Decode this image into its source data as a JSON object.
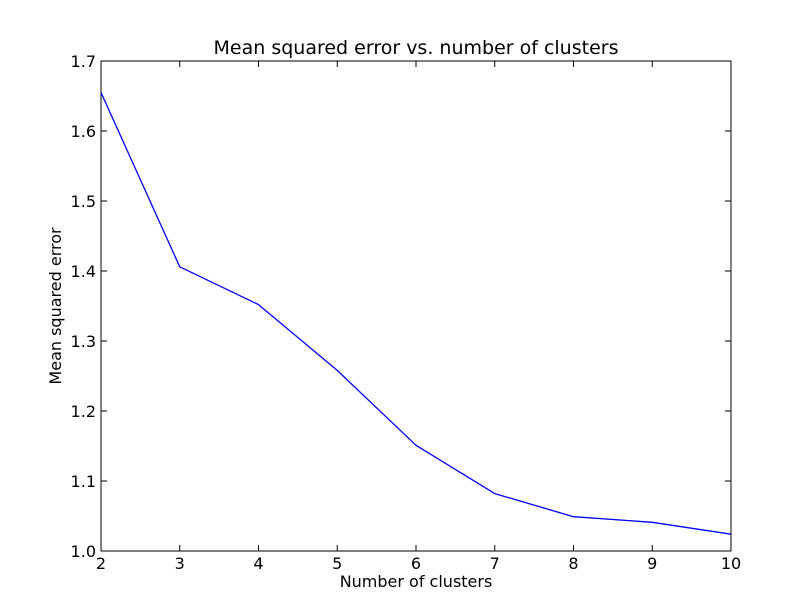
{
  "chart_data": {
    "type": "line",
    "title": "Mean squared error vs. number of clusters",
    "xlabel": "Number of clusters",
    "ylabel": "Mean squared error",
    "x": [
      2,
      3,
      4,
      5,
      6,
      7,
      8,
      9,
      10
    ],
    "series": [
      {
        "values": [
          1.655,
          1.406,
          1.352,
          1.258,
          1.151,
          1.082,
          1.049,
          1.041,
          1.024
        ],
        "color": "#0000ff"
      }
    ],
    "xlim": [
      2,
      10
    ],
    "ylim": [
      1.0,
      1.7
    ],
    "xticks": [
      "2",
      "3",
      "4",
      "5",
      "6",
      "7",
      "8",
      "9",
      "10"
    ],
    "yticks": [
      "1.0",
      "1.1",
      "1.2",
      "1.3",
      "1.4",
      "1.5",
      "1.6",
      "1.7"
    ],
    "grid": false,
    "legend": "none"
  }
}
